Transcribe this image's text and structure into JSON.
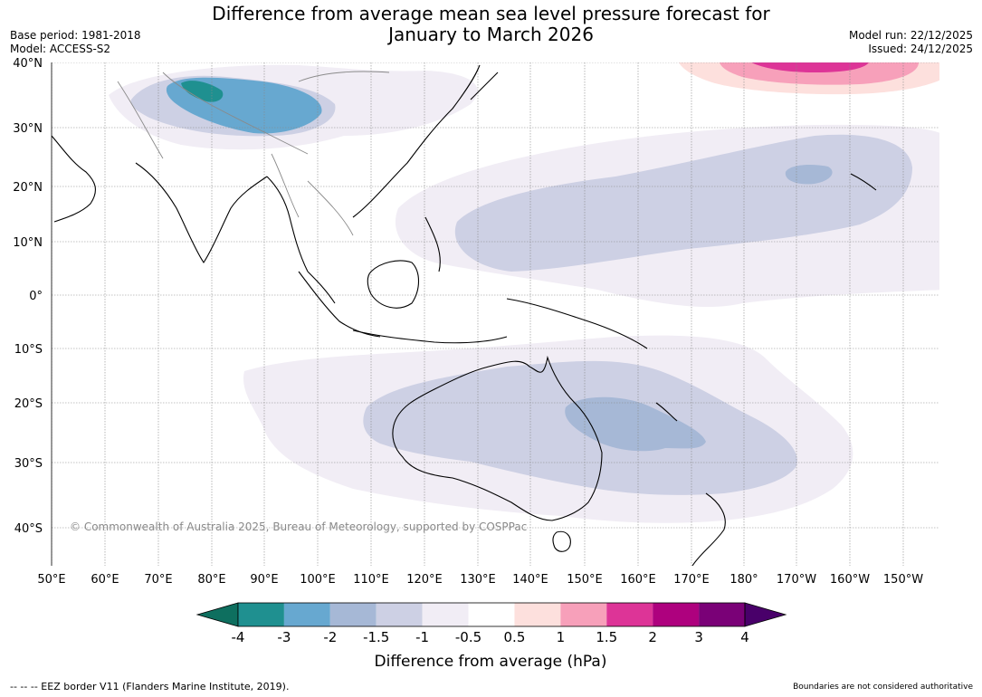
{
  "header": {
    "title_line1": "Difference from average mean sea level pressure forecast for",
    "title_line2": "January to March 2026",
    "base_period": "Base period: 1981-2018",
    "model": "Model: ACCESS-S2",
    "model_run": "Model run: 22/12/2025",
    "issued": "Issued: 24/12/2025"
  },
  "map": {
    "lat_labels": [
      "40°N",
      "30°N",
      "20°N",
      "10°N",
      "0°",
      "10°S",
      "20°S",
      "30°S",
      "40°S"
    ],
    "lon_labels": [
      "50°E",
      "60°E",
      "70°E",
      "80°E",
      "90°E",
      "100°E",
      "110°E",
      "120°E",
      "130°E",
      "140°E",
      "150°E",
      "160°E",
      "170°E",
      "180°",
      "170°W",
      "160°W",
      "150°W"
    ],
    "copyright": "© Commonwealth of Australia 2025, Bureau of Meteorology, supported by COSPPac"
  },
  "colorbar": {
    "title": "Difference from average (hPa)",
    "tick_labels": [
      "-4",
      "-3",
      "-2",
      "-1.5",
      "-1",
      "-0.5",
      "0.5",
      "1",
      "1.5",
      "2",
      "3",
      "4"
    ],
    "colors": [
      "#0e6f5f",
      "#1f9090",
      "#67a8d0",
      "#a6b8d6",
      "#cdd0e4",
      "#f1edf5",
      "#ffffff",
      "#fde0dd",
      "#f7a0ba",
      "#dd3497",
      "#ae017e",
      "#7a0177",
      "#49006a"
    ]
  },
  "footer": {
    "eez_note": "--  --  -- EEZ border V11 (Flanders Marine Institute, 2019).",
    "disclaimer": "Boundaries are not considered authoritative"
  }
}
